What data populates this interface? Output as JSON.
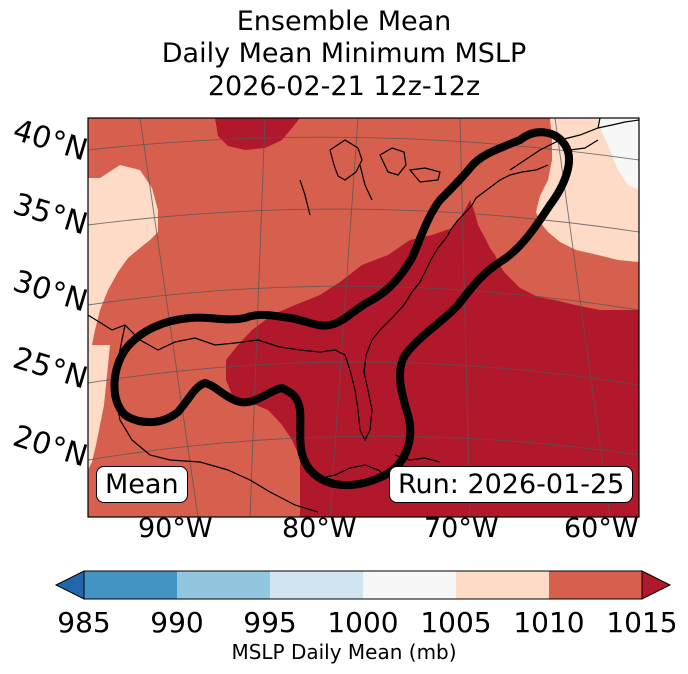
{
  "title": {
    "line1": "Ensemble Mean",
    "line2": "Daily Mean Minimum MSLP",
    "line3": "2026-02-21 12z-12z"
  },
  "map": {
    "latitude_labels": [
      "40°N",
      "35°N",
      "30°N",
      "25°N",
      "20°N"
    ],
    "longitude_labels": [
      "90°W",
      "80°W",
      "70°W",
      "60°W"
    ],
    "mean_label": "Mean",
    "run_label": "Run: 2026-01-25",
    "colors": {
      "c1000_1005": "#f7f7f7",
      "c1005_1010": "#fddbc7",
      "c1010_1015": "#d6604d",
      "c1015_plus": "#b2182b"
    }
  },
  "colorbar": {
    "label": "MSLP Daily Mean (mb)",
    "ticks": [
      "985",
      "990",
      "995",
      "1000",
      "1005",
      "1010",
      "1015"
    ],
    "colors": [
      "#4393c3",
      "#92c5de",
      "#d1e5f0",
      "#f7f7f7",
      "#fddbc7",
      "#d6604d"
    ],
    "under_color": "#2166ac",
    "over_color": "#b2182b"
  }
}
